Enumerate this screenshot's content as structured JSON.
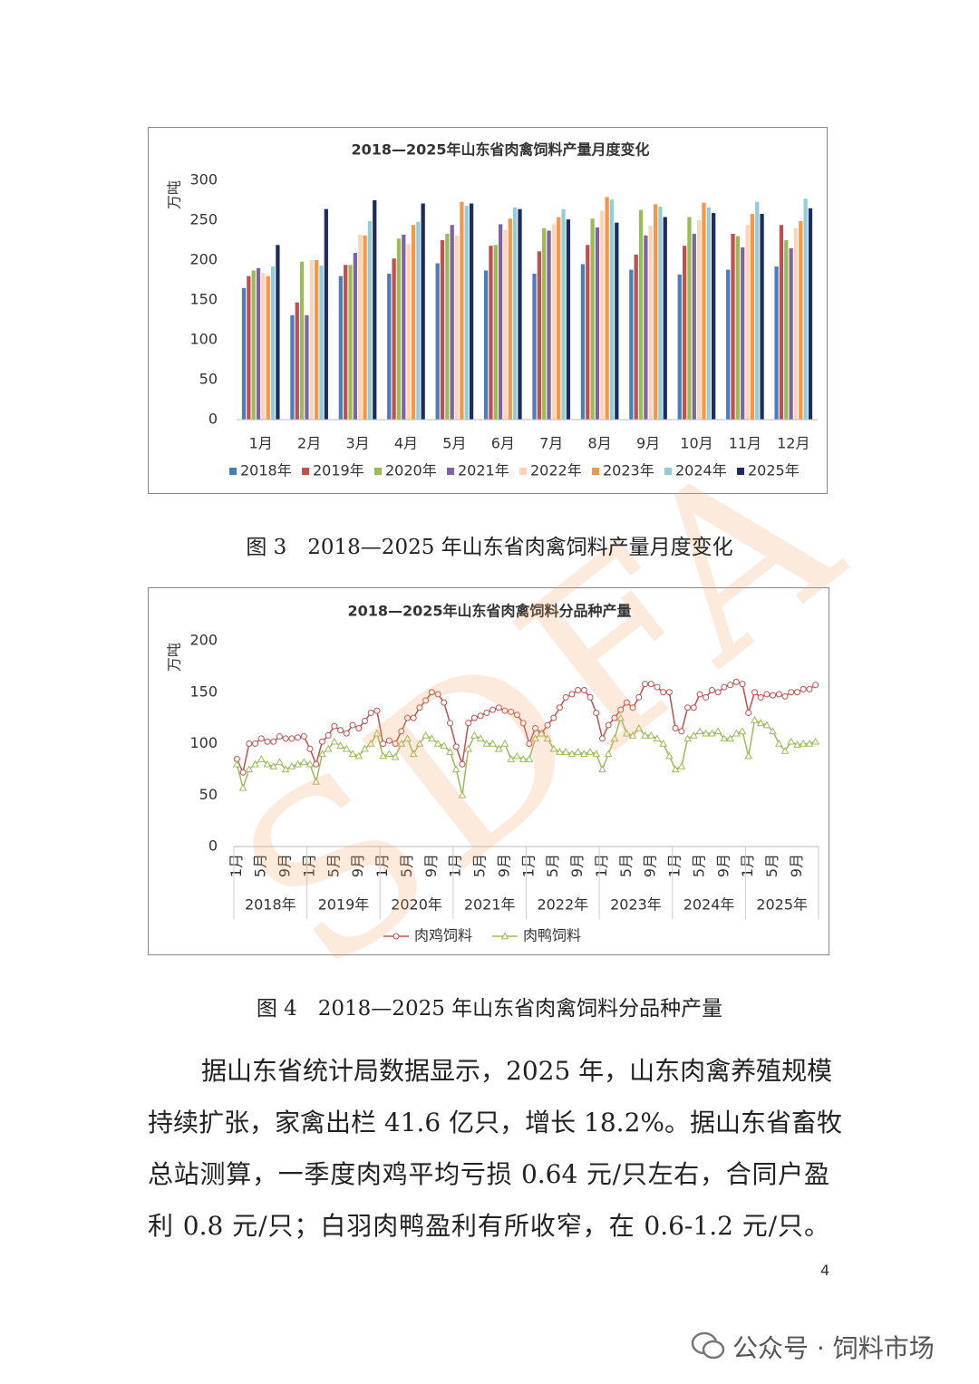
{
  "chart_data": [
    {
      "type": "bar",
      "title": "2018—2025年山东省肉禽饲料产量月度变化",
      "y_label": "万吨",
      "categories": [
        "1月",
        "2月",
        "3月",
        "4月",
        "5月",
        "6月",
        "7月",
        "8月",
        "9月",
        "10月",
        "11月",
        "12月"
      ],
      "ylim": [
        0,
        300
      ],
      "yticks": [
        0,
        50,
        100,
        150,
        200,
        250,
        300
      ],
      "grid": false,
      "legend": "bottom",
      "series": [
        {
          "name": "2018年",
          "color": "#4a7ebb",
          "values": [
            165,
            131,
            180,
            183,
            196,
            187,
            183,
            195,
            188,
            182,
            188,
            192
          ]
        },
        {
          "name": "2019年",
          "color": "#c0504d",
          "values": [
            180,
            147,
            194,
            202,
            225,
            218,
            211,
            219,
            207,
            218,
            233,
            244
          ]
        },
        {
          "name": "2020年",
          "color": "#9bbb59",
          "values": [
            187,
            198,
            194,
            227,
            233,
            219,
            240,
            252,
            263,
            254,
            230,
            225
          ]
        },
        {
          "name": "2021年",
          "color": "#8064a2",
          "values": [
            190,
            131,
            209,
            232,
            244,
            245,
            237,
            241,
            231,
            233,
            216,
            215
          ]
        },
        {
          "name": "2022年",
          "color": "#fcd5b4",
          "values": [
            184,
            200,
            232,
            220,
            231,
            238,
            245,
            262,
            243,
            250,
            244,
            240
          ]
        },
        {
          "name": "2023年",
          "color": "#f79646",
          "values": [
            180,
            200,
            231,
            244,
            273,
            252,
            254,
            279,
            270,
            272,
            258,
            249
          ]
        },
        {
          "name": "2024年",
          "color": "#93cddd",
          "values": [
            192,
            193,
            249,
            248,
            268,
            266,
            264,
            276,
            267,
            266,
            273,
            277
          ]
        },
        {
          "name": "2025年",
          "color": "#1f2d5c",
          "values": [
            219,
            264,
            275,
            271,
            271,
            264,
            251,
            247,
            254,
            259,
            258,
            265
          ]
        }
      ]
    },
    {
      "type": "line",
      "title": "2018—2025年山东省肉禽饲料分品种产量",
      "y_label": "万吨",
      "categories": [
        "1月",
        null,
        null,
        null,
        "5月",
        null,
        null,
        null,
        "9月",
        null,
        null,
        null,
        "1月",
        null,
        null,
        null,
        "5月",
        null,
        null,
        null,
        "9月",
        null,
        null,
        null,
        "1月",
        null,
        null,
        null,
        "5月",
        null,
        null,
        null,
        "9月",
        null,
        null,
        null,
        "1月",
        null,
        null,
        null,
        "5月",
        null,
        null,
        null,
        "9月",
        null,
        null,
        null,
        "1月",
        null,
        null,
        null,
        "5月",
        null,
        null,
        null,
        "9月",
        null,
        null,
        null,
        "1月",
        null,
        null,
        null,
        "5月",
        null,
        null,
        null,
        "9月",
        null,
        null,
        null,
        "1月",
        null,
        null,
        null,
        "5月",
        null,
        null,
        null,
        "9月",
        null,
        null,
        null,
        "1月",
        null,
        null,
        null,
        "5月",
        null,
        null,
        null,
        "9月",
        null,
        null,
        null
      ],
      "groups": [
        "2018年",
        "2019年",
        "2020年",
        "2021年",
        "2022年",
        "2023年",
        "2024年",
        "2025年"
      ],
      "ylim": [
        0,
        200
      ],
      "yticks": [
        0,
        50,
        100,
        150,
        200
      ],
      "grid": false,
      "legend": "bottom",
      "series": [
        {
          "name": "肉鸡饲料",
          "color": "#c0504d",
          "marker": "circle",
          "values": [
            85,
            72,
            100,
            100,
            105,
            102,
            102,
            107,
            105,
            105,
            106,
            107,
            95,
            80,
            102,
            108,
            117,
            113,
            110,
            118,
            115,
            122,
            130,
            132,
            100,
            103,
            100,
            112,
            125,
            125,
            135,
            142,
            150,
            148,
            140,
            120,
            97,
            80,
            120,
            125,
            127,
            130,
            133,
            135,
            132,
            131,
            128,
            120,
            100,
            115,
            110,
            118,
            125,
            135,
            145,
            148,
            152,
            152,
            145,
            130,
            105,
            118,
            125,
            133,
            140,
            135,
            145,
            158,
            158,
            155,
            150,
            150,
            115,
            112,
            135,
            135,
            148,
            145,
            152,
            150,
            155,
            157,
            160,
            158,
            130,
            150,
            145,
            148,
            147,
            148,
            146,
            150,
            150,
            153,
            153,
            157
          ]
        },
        {
          "name": "肉鸭饲料",
          "color": "#9bbb59",
          "marker": "triangle",
          "values": [
            80,
            57,
            75,
            80,
            85,
            80,
            78,
            82,
            75,
            78,
            80,
            82,
            80,
            63,
            90,
            95,
            102,
            98,
            95,
            90,
            88,
            95,
            100,
            110,
            88,
            90,
            87,
            100,
            105,
            90,
            100,
            108,
            105,
            100,
            98,
            92,
            75,
            50,
            95,
            108,
            105,
            100,
            100,
            95,
            100,
            85,
            88,
            85,
            85,
            105,
            110,
            105,
            95,
            92,
            92,
            90,
            92,
            90,
            92,
            90,
            75,
            90,
            105,
            125,
            110,
            108,
            115,
            108,
            108,
            105,
            100,
            88,
            75,
            78,
            105,
            108,
            112,
            110,
            110,
            112,
            105,
            105,
            110,
            112,
            88,
            123,
            120,
            118,
            112,
            100,
            93,
            102,
            99,
            100,
            100,
            102
          ]
        }
      ]
    }
  ],
  "document": {
    "captions": [
      "图 3　2018—2025 年山东省肉禽饲料产量月度变化",
      "图 4　2018—2025 年山东省肉禽饲料分品种产量"
    ],
    "paragraph_lines": [
      "据山东省统计局数据显示，2025 年，山东肉禽养殖规模",
      "持续扩张，家禽出栏 41.6 亿只，增长 18.2%。据山东省畜牧",
      "总站测算，一季度肉鸡平均亏损 0.64 元/只左右，合同户盈",
      "利 0.8 元/只；白羽肉鸭盈利有所收窄，在 0.6-1.2 元/只。"
    ],
    "page_number": "4",
    "watermark": "SDFA",
    "footer": "公众号 · 饲料市场"
  }
}
